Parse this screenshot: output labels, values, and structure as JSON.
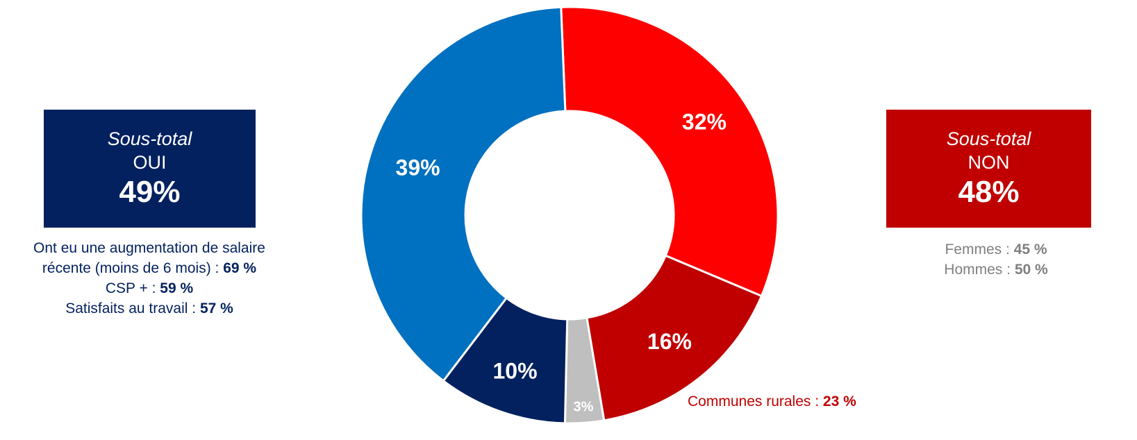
{
  "colors": {
    "oui_box": "#03215f",
    "non_box": "#c00000",
    "oui_text": "#03215f",
    "non_text": "#7f7f7f",
    "rural_text": "#c00000"
  },
  "oui_box": {
    "subtitle": "Sous-total",
    "label": "OUI",
    "value": "49%"
  },
  "non_box": {
    "subtitle": "Sous-total",
    "label": "NON",
    "value": "48%"
  },
  "oui_notes": [
    {
      "text": "Ont eu une augmentation de salaire",
      "value": ""
    },
    {
      "text": "récente (moins de 6 mois) : ",
      "value": "69 %"
    },
    {
      "text": "CSP + : ",
      "value": "59 %"
    },
    {
      "text": "Satisfaits au travail : ",
      "value": "57 %"
    }
  ],
  "non_notes": [
    {
      "text": "Femmes : ",
      "value": "45 %"
    },
    {
      "text": "Hommes : ",
      "value": "50 %"
    }
  ],
  "rural_note": {
    "text": "Communes rurales : ",
    "value": "23 %"
  },
  "chart_data": {
    "type": "pie",
    "donut": true,
    "slices": [
      {
        "label": "32%",
        "value": 32,
        "color": "#ff0000"
      },
      {
        "label": "16%",
        "value": 16,
        "color": "#c00000"
      },
      {
        "label": "3%",
        "value": 3,
        "color": "#bfbfbf"
      },
      {
        "label": "10%",
        "value": 10,
        "color": "#03215f"
      },
      {
        "label": "39%",
        "value": 39,
        "color": "#0070c0"
      }
    ]
  }
}
